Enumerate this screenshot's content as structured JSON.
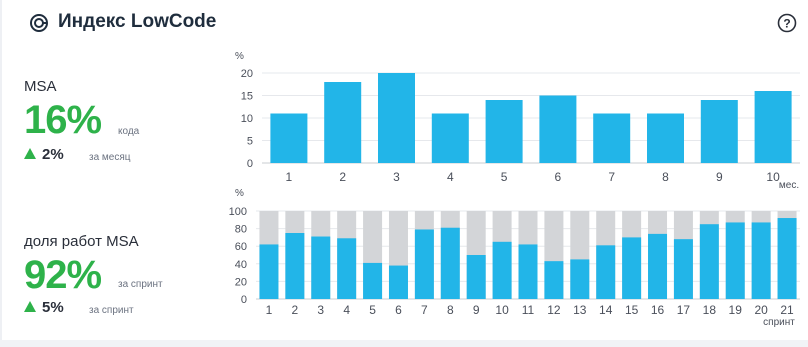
{
  "header": {
    "title": "Индекс LowCode",
    "icon": "lowcode-logo-icon",
    "help_icon": "question-icon"
  },
  "metrics": [
    {
      "label": "MSA",
      "value": "16%",
      "unit": "кода",
      "delta": "2%",
      "delta_unit": "за месяц"
    },
    {
      "label": "доля работ MSA",
      "value": "92%",
      "unit": "за спринт",
      "delta": "5%",
      "delta_unit": "за спринт"
    }
  ],
  "colors": {
    "accent": "#2eb24a",
    "bar": "#22b5e8",
    "bar_background": "#d3d5d8"
  },
  "chart_data": [
    {
      "type": "bar",
      "ylabel": "%",
      "xlabel": "мес.",
      "ylim": [
        0,
        20
      ],
      "yticks": [
        0,
        5,
        10,
        15,
        20
      ],
      "categories": [
        "1",
        "2",
        "3",
        "4",
        "5",
        "6",
        "7",
        "8",
        "9",
        "10"
      ],
      "values": [
        11,
        18,
        20,
        11,
        14,
        15,
        11,
        11,
        14,
        16
      ],
      "grid": true
    },
    {
      "type": "bar",
      "ylabel": "%",
      "xlabel": "спринт",
      "ylim": [
        0,
        100
      ],
      "yticks": [
        0,
        20,
        40,
        60,
        80,
        100
      ],
      "categories": [
        "1",
        "2",
        "3",
        "4",
        "5",
        "6",
        "7",
        "8",
        "9",
        "10",
        "11",
        "12",
        "13",
        "14",
        "15",
        "16",
        "17",
        "18",
        "19",
        "20",
        "21"
      ],
      "values": [
        62,
        75,
        71,
        69,
        41,
        38,
        79,
        81,
        50,
        65,
        62,
        43,
        45,
        61,
        70,
        74,
        68,
        85,
        87,
        87,
        92
      ],
      "background": 100,
      "grid": true
    }
  ]
}
